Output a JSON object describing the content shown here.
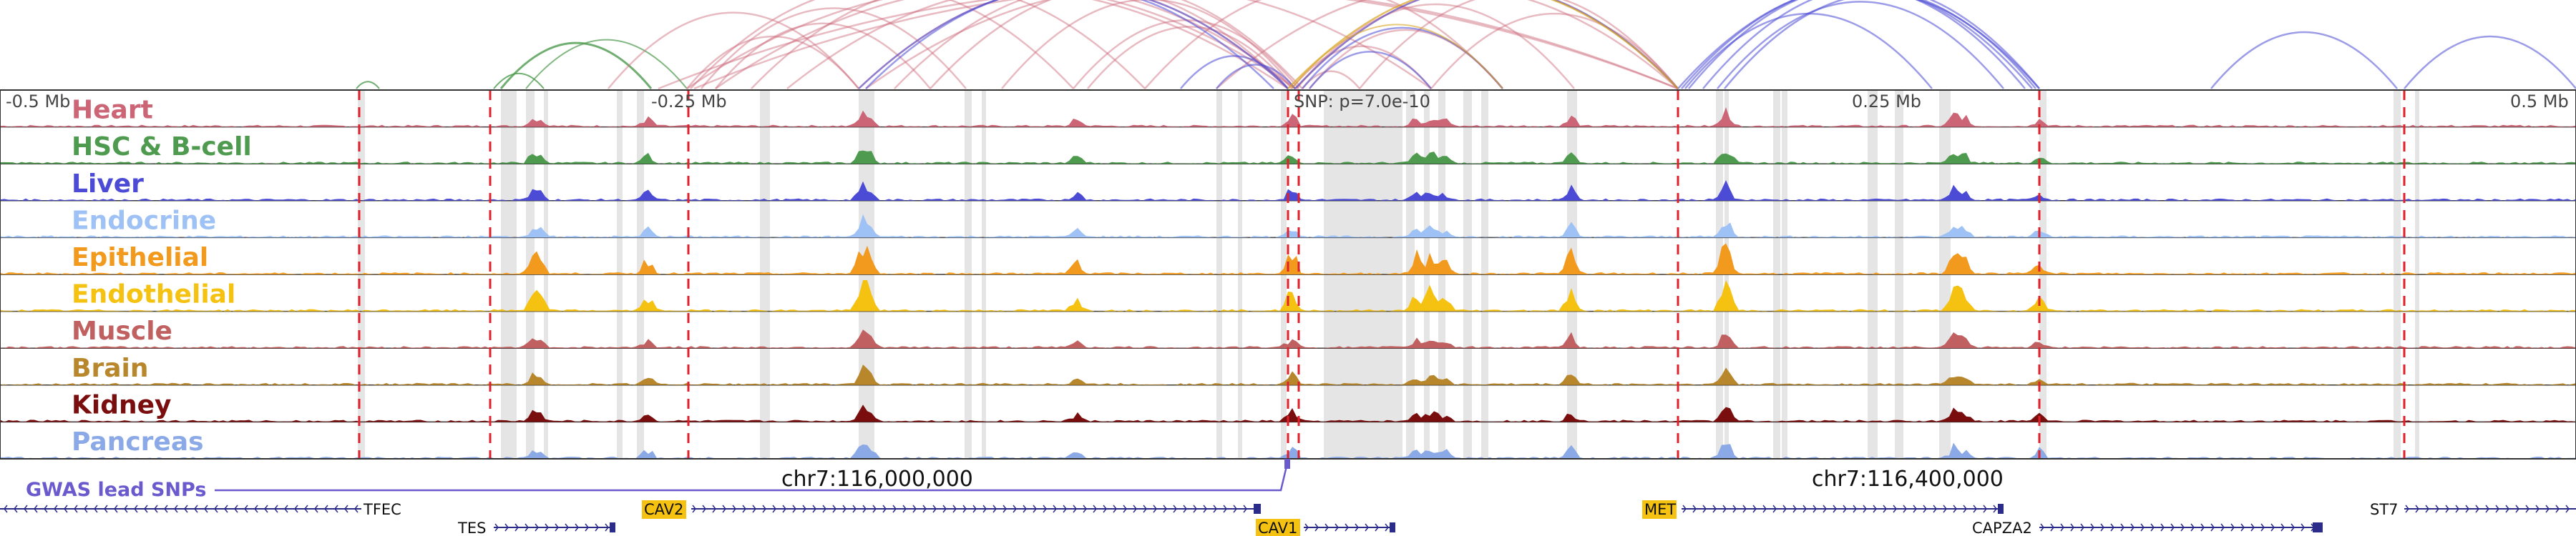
{
  "axis": {
    "left": "-0.5 Mb",
    "mid_left": "-0.25 Mb",
    "mid_right": "0.25 Mb",
    "right": "0.5 Mb"
  },
  "snp_label": "SNP: p=7.0e-10",
  "tracks": [
    {
      "name": "Heart",
      "color": "#cc6677"
    },
    {
      "name": "HSC & B-cell",
      "color": "#4e9a4e"
    },
    {
      "name": "Liver",
      "color": "#4b4bd6"
    },
    {
      "name": "Endocrine",
      "color": "#9ec2f5"
    },
    {
      "name": "Epithelial",
      "color": "#f29a1d"
    },
    {
      "name": "Endothelial",
      "color": "#f5c211"
    },
    {
      "name": "Muscle",
      "color": "#c06060"
    },
    {
      "name": "Brain",
      "color": "#b8862b"
    },
    {
      "name": "Kidney",
      "color": "#7a0e0e"
    },
    {
      "name": "Pancreas",
      "color": "#8aa9e6"
    }
  ],
  "gwas_label": "GWAS lead SNPs",
  "coords": [
    "chr7:116,000,000",
    "chr7:116,400,000"
  ],
  "genes": [
    {
      "name": "TFEC",
      "highlight": false
    },
    {
      "name": "TES",
      "highlight": false
    },
    {
      "name": "CAV2",
      "highlight": true
    },
    {
      "name": "CAV1",
      "highlight": true
    },
    {
      "name": "MET",
      "highlight": true
    },
    {
      "name": "CAPZA2",
      "highlight": false
    },
    {
      "name": "ST7",
      "highlight": false
    }
  ],
  "colors": {
    "gene_highlight": "#f5c211",
    "gene_strand": "#2b2b8a",
    "red_dashed": "#e0202a",
    "gray_band": "#cfcfcf",
    "arc_red": "#cc6677",
    "arc_blue": "#4b4bd6",
    "arc_green": "#4e9a4e",
    "arc_gold": "#d9a520"
  }
}
